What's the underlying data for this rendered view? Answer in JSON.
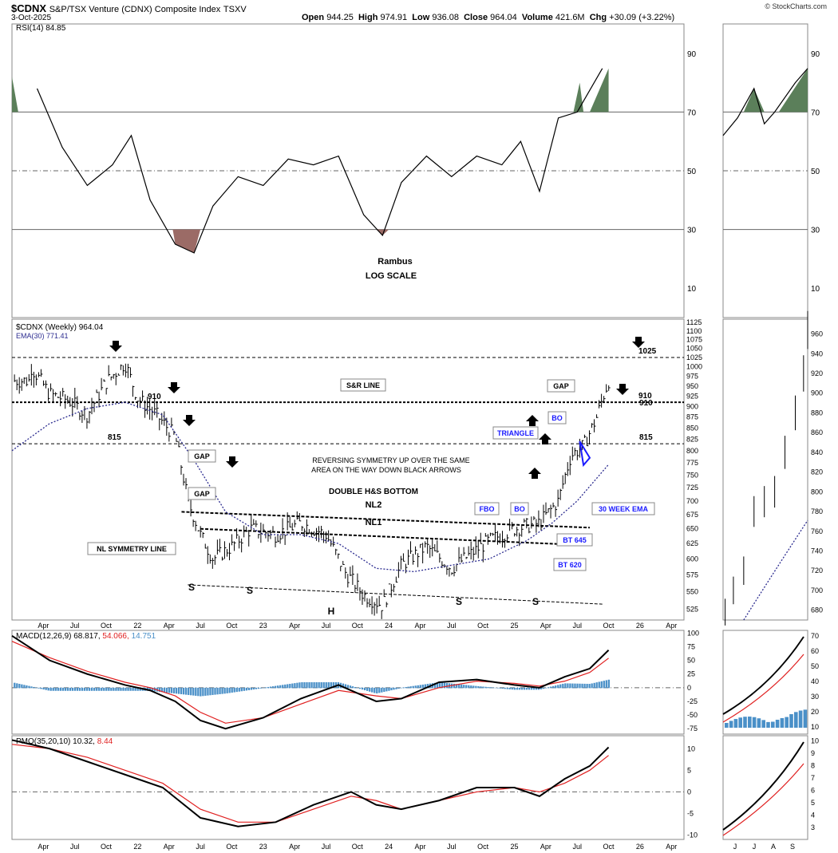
{
  "header": {
    "symbol": "$CDNX",
    "name": "S&P/TSX Venture (CDNX) Composite Index",
    "exchange": "TSXV",
    "date": "3-Oct-2025",
    "open_label": "Open",
    "open": "944.25",
    "high_label": "High",
    "high": "974.91",
    "low_label": "Low",
    "low": "936.08",
    "close_label": "Close",
    "close": "964.04",
    "volume_label": "Volume",
    "volume": "421.6M",
    "chg_label": "Chg",
    "chg": "+30.09 (+3.22%)",
    "copyright": "© StockCharts.com"
  },
  "chart_data": [
    {
      "type": "line",
      "panel": "rsi",
      "legend": "RSI(14) 84.85",
      "yticks": [
        10,
        30,
        50,
        70,
        90
      ],
      "ylim": [
        0,
        100
      ],
      "reference_lines": [
        30,
        50,
        70
      ],
      "x": [
        2021.2,
        2021.4,
        2021.6,
        2021.8,
        2021.95,
        2022.1,
        2022.3,
        2022.45,
        2022.6,
        2022.8,
        2023.0,
        2023.2,
        2023.4,
        2023.6,
        2023.8,
        2023.95,
        2024.1,
        2024.3,
        2024.5,
        2024.7,
        2024.9,
        2025.05,
        2025.2,
        2025.35,
        2025.5,
        2025.7
      ],
      "values": [
        78,
        58,
        45,
        52,
        62,
        40,
        25,
        22,
        38,
        48,
        45,
        54,
        52,
        55,
        35,
        28,
        46,
        55,
        48,
        55,
        52,
        60,
        43,
        68,
        70,
        84.85
      ],
      "overbought_color": "#5b7f5a",
      "oversold_color": "#9b6b66",
      "annotations": [
        "Rambus",
        "LOG SCALE"
      ]
    },
    {
      "type": "line",
      "panel": "price",
      "title": "$CDNX (Weekly) 964.04",
      "ema_legend": "EMA(30) 771.41",
      "scale": "log",
      "yticks": [
        525,
        550,
        575,
        600,
        625,
        650,
        675,
        700,
        725,
        750,
        775,
        800,
        825,
        850,
        875,
        900,
        925,
        950,
        975,
        1000,
        1025,
        1050,
        1075,
        1100,
        1125
      ],
      "xticks": [
        "Apr",
        "Jul",
        "Oct",
        "22",
        "Apr",
        "Jul",
        "Oct",
        "23",
        "Apr",
        "Jul",
        "Oct",
        "24",
        "Apr",
        "Jul",
        "Oct",
        "25",
        "Apr",
        "Jul",
        "Oct",
        "26",
        "Apr"
      ],
      "series": [
        {
          "name": "$CDNX",
          "x": [
            2021.15,
            2021.3,
            2021.45,
            2021.6,
            2021.75,
            2021.9,
            2022.0,
            2022.15,
            2022.3,
            2022.4,
            2022.5,
            2022.6,
            2022.75,
            2022.9,
            2023.1,
            2023.3,
            2023.5,
            2023.65,
            2023.8,
            2023.95,
            2024.1,
            2024.3,
            2024.5,
            2024.6,
            2024.8,
            2025.0,
            2025.2,
            2025.35,
            2025.45,
            2025.55,
            2025.65,
            2025.75
          ],
          "values": [
            1000,
            930,
            915,
            880,
            960,
            1010,
            920,
            880,
            830,
            700,
            640,
            600,
            620,
            650,
            640,
            660,
            640,
            580,
            545,
            530,
            590,
            620,
            585,
            600,
            630,
            650,
            660,
            700,
            790,
            810,
            870,
            964
          ]
        },
        {
          "name": "EMA(30)",
          "x": [
            2021.0,
            2021.3,
            2021.6,
            2021.9,
            2022.2,
            2022.45,
            2022.7,
            2023.0,
            2023.3,
            2023.6,
            2023.9,
            2024.2,
            2024.5,
            2024.8,
            2025.1,
            2025.3,
            2025.5,
            2025.75
          ],
          "values": [
            800,
            860,
            895,
            910,
            880,
            780,
            680,
            640,
            640,
            625,
            585,
            580,
            590,
            600,
            630,
            660,
            700,
            771.41
          ]
        }
      ],
      "levels": [
        {
          "value": 1025,
          "label": "1025",
          "style": "dashed"
        },
        {
          "value": 910,
          "label": "910",
          "style": "dotted"
        },
        {
          "value": 815,
          "label": "815",
          "style": "dashed"
        }
      ],
      "annotations": [
        "S&R LINE",
        "GAP",
        "GAP",
        "GAP",
        "REVERSING SYMMETRY UP OVER THE SAME",
        "AREA ON THE WAY DOWN BLACK ARROWS",
        "DOUBLE H&S BOTTOM",
        "NL2",
        "NL1",
        "NL SYMMETRY LINE",
        "S",
        "S",
        "H",
        "S",
        "S",
        "FBO",
        "BO",
        "BO",
        "TRIANGLE",
        "30 WEEK EMA",
        "BT 645",
        "BT 620"
      ]
    },
    {
      "type": "line",
      "panel": "macd",
      "legend_name": "MACD(12,26,9)",
      "macd": "68.817",
      "signal": "54.066",
      "hist": "14.751",
      "yticks": [
        -75,
        -50,
        -25,
        0,
        25,
        50,
        75,
        100
      ],
      "ylim": [
        -85,
        105
      ],
      "x": [
        2021.0,
        2021.3,
        2021.6,
        2021.9,
        2022.1,
        2022.3,
        2022.5,
        2022.7,
        2023.0,
        2023.3,
        2023.6,
        2023.9,
        2024.1,
        2024.4,
        2024.7,
        2025.0,
        2025.2,
        2025.4,
        2025.6,
        2025.75
      ],
      "macd_values": [
        95,
        50,
        25,
        5,
        -5,
        -25,
        -60,
        -75,
        -55,
        -20,
        5,
        -25,
        -20,
        10,
        15,
        5,
        0,
        20,
        35,
        68.8
      ],
      "signal_values": [
        85,
        55,
        30,
        10,
        0,
        -15,
        -45,
        -65,
        -55,
        -30,
        -5,
        -15,
        -20,
        0,
        12,
        8,
        3,
        12,
        28,
        54.1
      ],
      "colors": {
        "macd": "#000000",
        "signal": "#e02020",
        "hist": "#4a90c8"
      }
    },
    {
      "type": "line",
      "panel": "pmo",
      "legend_name": "PMO(35,20,10)",
      "pmo": "10.32",
      "signal": "8.44",
      "yticks": [
        -10,
        -5,
        0,
        5,
        10
      ],
      "ylim": [
        -11,
        13
      ],
      "x": [
        2021.0,
        2021.3,
        2021.6,
        2021.9,
        2022.2,
        2022.5,
        2022.8,
        2023.1,
        2023.4,
        2023.7,
        2023.9,
        2024.1,
        2024.4,
        2024.7,
        2025.0,
        2025.2,
        2025.4,
        2025.6,
        2025.75
      ],
      "pmo_values": [
        12,
        10,
        7,
        4,
        1,
        -6,
        -8,
        -7,
        -3,
        0,
        -3,
        -4,
        -2,
        1,
        1,
        -1,
        3,
        6,
        10.32
      ],
      "signal_values": [
        11,
        10,
        8,
        5,
        2,
        -4,
        -7,
        -7,
        -4,
        -1,
        -2,
        -4,
        -2,
        0,
        1,
        0,
        2,
        5,
        8.44
      ]
    }
  ],
  "sidepanel": {
    "xticks": [
      "J",
      "J",
      "A",
      "S"
    ],
    "rsi_yticks": [
      "10",
      "30",
      "50",
      "70",
      "90"
    ],
    "price_yticks": [
      "680",
      "700",
      "720",
      "740",
      "760",
      "780",
      "800",
      "820",
      "840",
      "860",
      "880",
      "900",
      "920",
      "940",
      "960"
    ],
    "macd_yticks": [
      "10",
      "20",
      "30",
      "40",
      "50",
      "60",
      "70"
    ],
    "pmo_yticks": [
      "3",
      "4",
      "5",
      "6",
      "7",
      "8",
      "9",
      "10"
    ]
  }
}
